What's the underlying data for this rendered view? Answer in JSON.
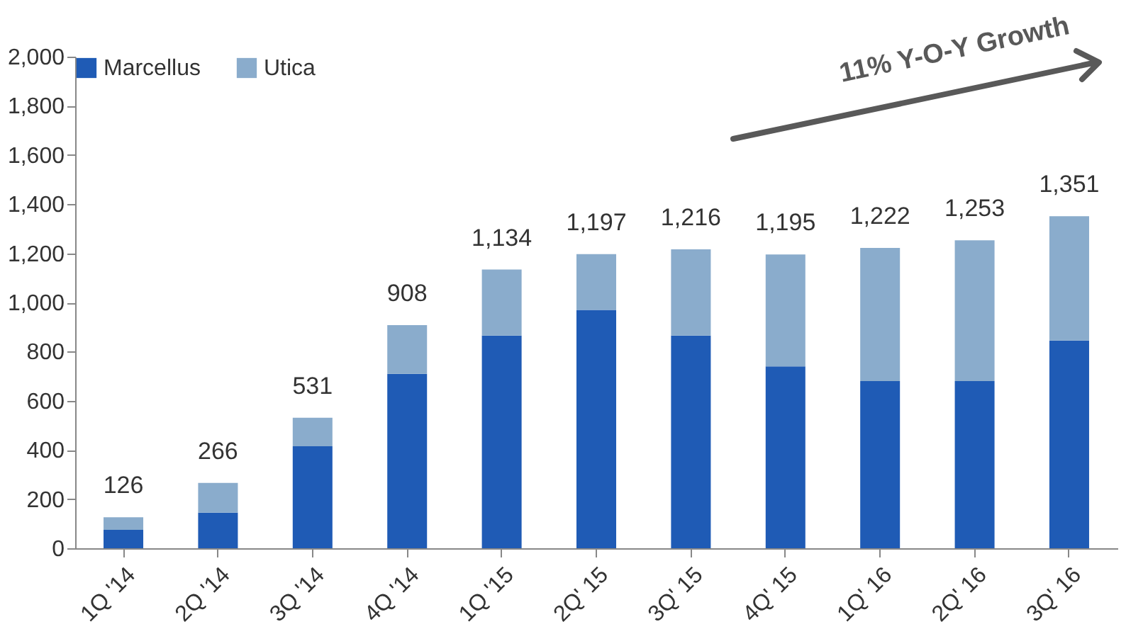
{
  "chart_data": {
    "type": "bar",
    "stacked": true,
    "categories": [
      "1Q '14",
      "2Q '14",
      "3Q '14",
      "4Q '14",
      "1Q '15",
      "2Q' 15",
      "3Q' 15",
      "4Q' 15",
      "1Q' 16",
      "2Q' 16",
      "3Q' 16"
    ],
    "series": [
      {
        "name": "Marcellus",
        "color": "#1f5bb5",
        "values": [
          75,
          145,
          415,
          710,
          865,
          970,
          865,
          740,
          680,
          680,
          845
        ]
      },
      {
        "name": "Utica",
        "color": "#8aaccc",
        "values": [
          51,
          121,
          116,
          198,
          269,
          227,
          351,
          455,
          542,
          573,
          506
        ]
      }
    ],
    "totals": [
      "126",
      "266",
      "531",
      "908",
      "1,134",
      "1,197",
      "1,216",
      "1,195",
      "1,222",
      "1,253",
      "1,351"
    ],
    "ylim": [
      0,
      2000
    ],
    "yticks": [
      0,
      200,
      400,
      600,
      800,
      {
        "value": 1000,
        "label": "1,000"
      },
      {
        "value": 1200,
        "label": "1,200"
      },
      {
        "value": 1400,
        "label": "1,400"
      },
      {
        "value": 1600,
        "label": "1,600"
      },
      {
        "value": 1800,
        "label": "1,800"
      },
      {
        "value": 2000,
        "label": "2,000"
      }
    ],
    "grid": false,
    "legend": "top left",
    "annotations": [
      "11% Y-O-Y Growth"
    ]
  }
}
